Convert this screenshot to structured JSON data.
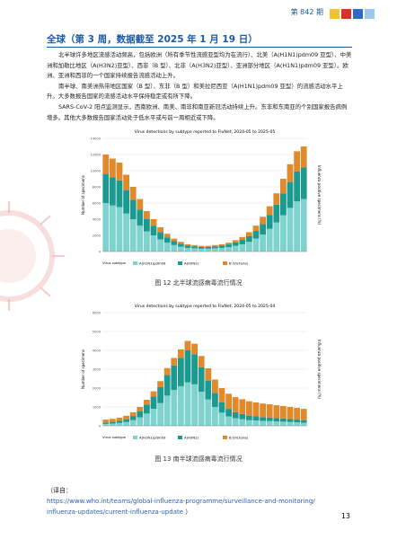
{
  "header": {
    "issue": "第 842 期"
  },
  "title": "全球（第 3 周，数据截至 2025 年 1 月 19 日）",
  "paragraphs": [
    "北半球许多地区流感活动频高，包括欧洲（所有季节性流感亚型均为在流行）、北美（A(H1N1)pdm09 亚型）、中美洲和加勒比地区（A(H3N2)亚型）、西非（B 型）、北非（A(H3N2)亚型）、亚洲部分地区（A(H1N1)pdm09 亚型）。欧洲、亚洲和西非的一个国家持续报告流感活动上升。",
    "南半球、南美洲热带地区国家（B 型）、东非（B 型）和美拉尼西亚（A(H1N1)pdm09 亚型）的流感活动水平上升。大多数报告国家的流感活动水平保持稳定或有所下降。",
    "SARS-CoV-2 阳点监测显示，西南欧洲、南美、南非和南亚新冠活动持续上升。东非和东南亚的个别国家报告病例增多。其他大多数报告国家活动处于低水平或与前一周相近或下降。"
  ],
  "chart_data": [
    {
      "type": "bar",
      "stacked": true,
      "title": "Virus detections by subtype reported to FluNet, 2024-05 to 2025-05",
      "y_label": "Number of specimens",
      "y2_label": "Influenza positive specimens (%)",
      "legend_title": "Virus subtype",
      "caption": "图 12   北半球流感病毒流行情况",
      "ylim": [
        0,
        14000
      ],
      "yticks": [
        0,
        2000,
        4000,
        6000,
        8000,
        10000,
        12000,
        14000
      ],
      "grid": true,
      "series": [
        {
          "name": "A(H1N1)pdm09",
          "color": "#7fd3cf",
          "values": [
            6000,
            5700,
            5500,
            4700,
            4000,
            3200,
            2500,
            2000,
            1500,
            1100,
            800,
            600,
            450,
            400,
            350,
            350,
            400,
            450,
            550,
            700,
            900,
            1200,
            1600,
            2100,
            2800,
            3600,
            4500,
            5400,
            6200,
            6500
          ]
        },
        {
          "name": "A(H3N2)",
          "color": "#1d9a8f",
          "values": [
            3600,
            3500,
            3300,
            2900,
            2400,
            2000,
            1500,
            1200,
            900,
            660,
            480,
            360,
            270,
            240,
            210,
            210,
            240,
            270,
            330,
            420,
            540,
            720,
            960,
            1300,
            1700,
            2200,
            2700,
            3200,
            3700,
            3900
          ]
        },
        {
          "name": "B (Victoria)",
          "color": "#e08a2c",
          "values": [
            2400,
            2300,
            2200,
            1900,
            1600,
            1300,
            1000,
            800,
            600,
            440,
            320,
            240,
            180,
            160,
            140,
            140,
            160,
            180,
            220,
            280,
            360,
            480,
            640,
            900,
            1100,
            1400,
            1800,
            2200,
            2500,
            2600
          ]
        }
      ]
    },
    {
      "type": "bar",
      "stacked": true,
      "title": "Virus detections by subtype reported to FluNet, 2024-05 to 2025-04",
      "y_label": "Number of specimens",
      "y2_label": "Influenza positive specimens (%)",
      "legend_title": "Virus subtype",
      "caption": "图 13   南半球流感病毒流行情况",
      "ylim": [
        0,
        6000
      ],
      "yticks": [
        0,
        1000,
        2000,
        3000,
        4000,
        5000,
        6000
      ],
      "grid": true,
      "series": [
        {
          "name": "A(H1N1)pdm09",
          "color": "#7fd3cf",
          "values": [
            100,
            120,
            150,
            200,
            300,
            450,
            650,
            900,
            1200,
            1600,
            1900,
            2100,
            2300,
            2200,
            1800,
            1400,
            1000,
            700,
            500,
            400,
            350,
            300,
            280,
            260,
            250,
            230,
            220,
            200,
            180,
            160
          ]
        },
        {
          "name": "A(H3N2)",
          "color": "#1d9a8f",
          "values": [
            80,
            90,
            110,
            150,
            220,
            330,
            480,
            650,
            850,
            1100,
            1300,
            1500,
            1700,
            1600,
            1300,
            1000,
            750,
            550,
            400,
            320,
            280,
            240,
            220,
            200,
            190,
            180,
            170,
            160,
            150,
            140
          ]
        },
        {
          "name": "B (Victoria)",
          "color": "#e08a2c",
          "values": [
            150,
            160,
            170,
            180,
            200,
            220,
            250,
            280,
            320,
            360,
            400,
            450,
            500,
            550,
            600,
            650,
            700,
            750,
            800,
            800,
            780,
            760,
            740,
            720,
            700,
            680,
            660,
            640,
            620,
            600
          ]
        }
      ]
    }
  ],
  "source": {
    "prefix": "（译自：",
    "links": [
      "https://www.who.int/teams/global-influenza-programme/surveillance-and-monitoring/",
      "influenza-updates/current-influenza-update"
    ],
    "suffix": "）"
  },
  "page_number": "13"
}
